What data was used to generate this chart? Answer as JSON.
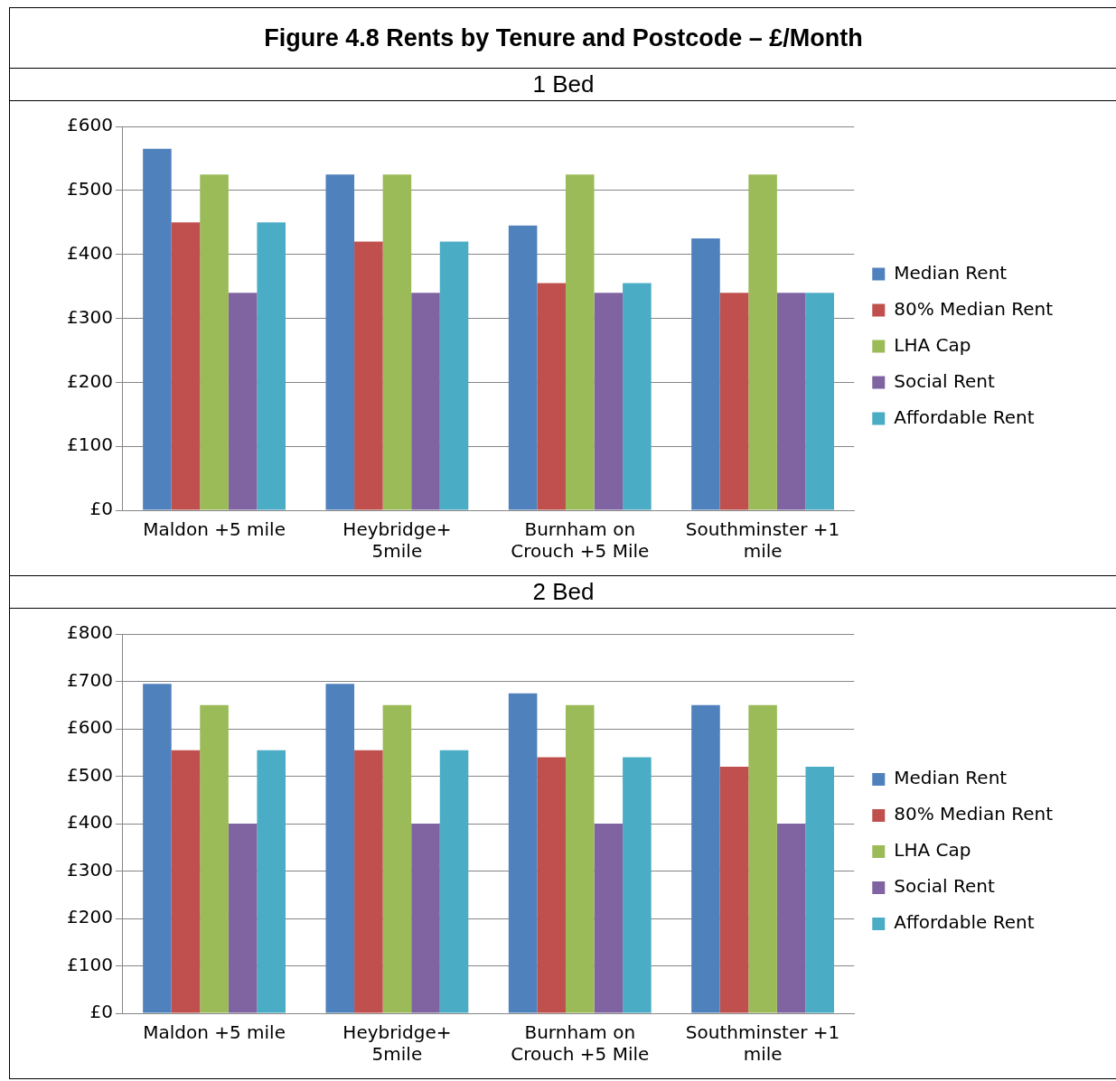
{
  "chart_data": [
    {
      "type": "bar",
      "title": "Figure 4.8  Rents by Tenure and Postcode – £/Month",
      "subtitle": "1 Bed",
      "categories": [
        "Maldon +5 mile",
        "Heybridge+ 5mile",
        "Burnham on Crouch +5 Mile",
        "Southminster +1 mile"
      ],
      "series": [
        {
          "name": "Median Rent",
          "color": "#4f81bd",
          "values": [
            565,
            525,
            445,
            425
          ]
        },
        {
          "name": "80% Median Rent",
          "color": "#c0504d",
          "values": [
            450,
            420,
            355,
            340
          ]
        },
        {
          "name": "LHA Cap",
          "color": "#9bbb59",
          "values": [
            525,
            525,
            525,
            525
          ]
        },
        {
          "name": "Social Rent",
          "color": "#8064a2",
          "values": [
            340,
            340,
            340,
            340
          ]
        },
        {
          "name": "Affordable Rent",
          "color": "#4bacc6",
          "values": [
            450,
            420,
            355,
            340
          ]
        }
      ],
      "ylim": [
        0,
        600
      ],
      "yticks": [
        {
          "value": 0,
          "label": "£0"
        },
        {
          "value": 100,
          "label": "£100"
        },
        {
          "value": 200,
          "label": "£200"
        },
        {
          "value": 300,
          "label": "£300"
        },
        {
          "value": 400,
          "label": "£400"
        },
        {
          "value": 500,
          "label": "£500"
        },
        {
          "value": 600,
          "label": "£600"
        }
      ],
      "grid": "y",
      "legend": "right"
    },
    {
      "type": "bar",
      "subtitle": "2 Bed",
      "categories": [
        "Maldon +5 mile",
        "Heybridge+ 5mile",
        "Burnham on Crouch +5 Mile",
        "Southminster +1 mile"
      ],
      "series": [
        {
          "name": "Median Rent",
          "color": "#4f81bd",
          "values": [
            695,
            695,
            675,
            650
          ]
        },
        {
          "name": "80% Median Rent",
          "color": "#c0504d",
          "values": [
            555,
            555,
            540,
            520
          ]
        },
        {
          "name": "LHA Cap",
          "color": "#9bbb59",
          "values": [
            650,
            650,
            650,
            650
          ]
        },
        {
          "name": "Social Rent",
          "color": "#8064a2",
          "values": [
            400,
            400,
            400,
            400
          ]
        },
        {
          "name": "Affordable Rent",
          "color": "#4bacc6",
          "values": [
            555,
            555,
            540,
            520
          ]
        }
      ],
      "ylim": [
        0,
        800
      ],
      "yticks": [
        {
          "value": 0,
          "label": "£0"
        },
        {
          "value": 100,
          "label": "£100"
        },
        {
          "value": 200,
          "label": "£200"
        },
        {
          "value": 300,
          "label": "£300"
        },
        {
          "value": 400,
          "label": "£400"
        },
        {
          "value": 500,
          "label": "£500"
        },
        {
          "value": 600,
          "label": "£600"
        },
        {
          "value": 700,
          "label": "£700"
        },
        {
          "value": 800,
          "label": "£800"
        }
      ],
      "grid": "y",
      "legend": "right"
    }
  ]
}
